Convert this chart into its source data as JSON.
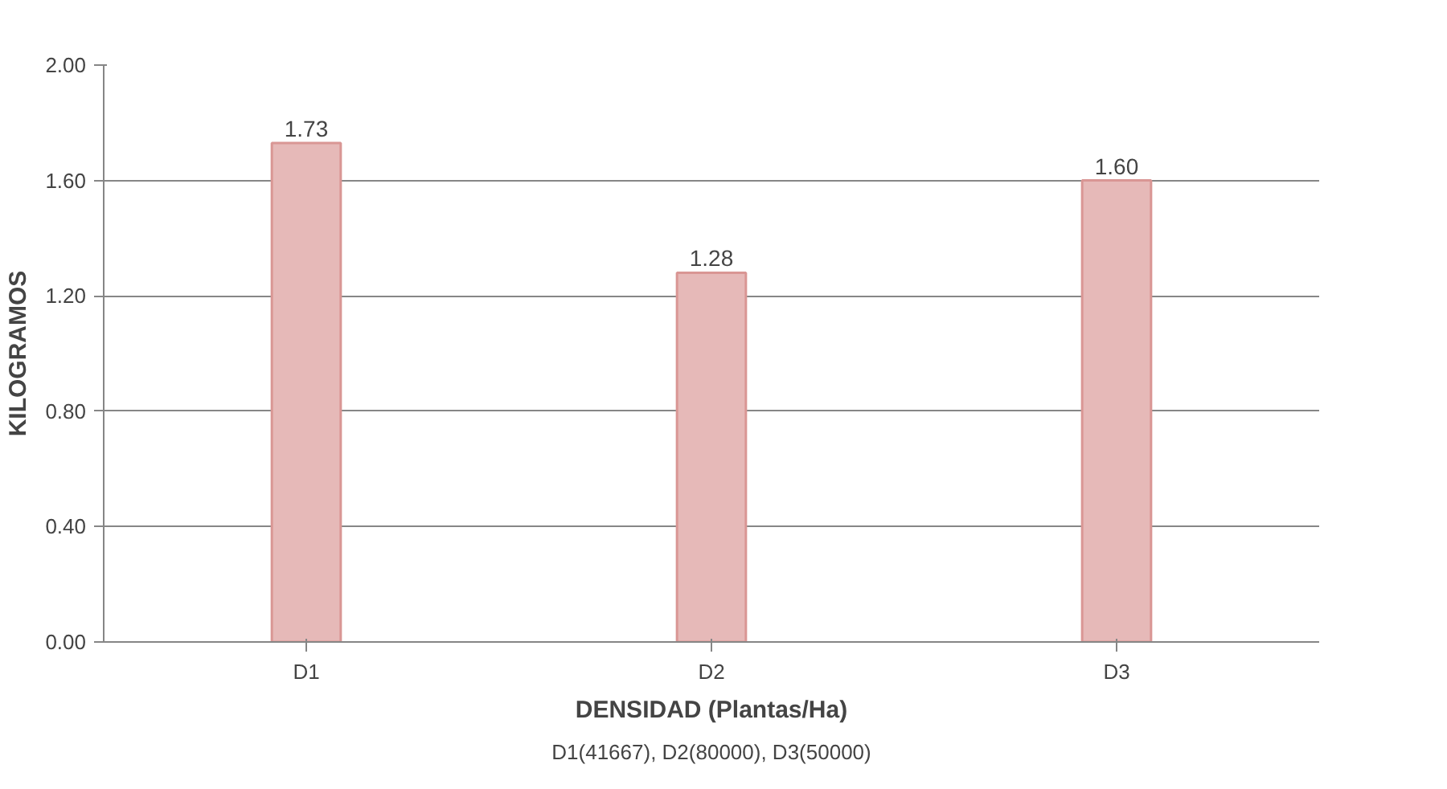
{
  "chart_data": {
    "type": "bar",
    "xlabel": "DENSIDAD (Plantas/Ha)",
    "ylabel": "KILOGRAMOS",
    "categories": [
      "D1",
      "D2",
      "D3"
    ],
    "series": [
      {
        "color": "#e6b9b8",
        "values": [
          1.73,
          1.28,
          1.6
        ],
        "value_labels": [
          "1.73",
          "1.28",
          "1.60"
        ]
      }
    ],
    "ylim": [
      0,
      2
    ],
    "yticks": [
      {
        "value": 0,
        "label": "0.00"
      },
      {
        "value": 0.4,
        "label": "0.40"
      },
      {
        "value": 0.8,
        "label": "0.80"
      },
      {
        "value": 1.2,
        "label": "1.20"
      },
      {
        "value": 1.6,
        "label": "1.60"
      },
      {
        "value": 2,
        "label": "2.00"
      }
    ],
    "grid": "y",
    "annotations": [
      "D1(41667), D2(80000), D3(50000)"
    ]
  }
}
